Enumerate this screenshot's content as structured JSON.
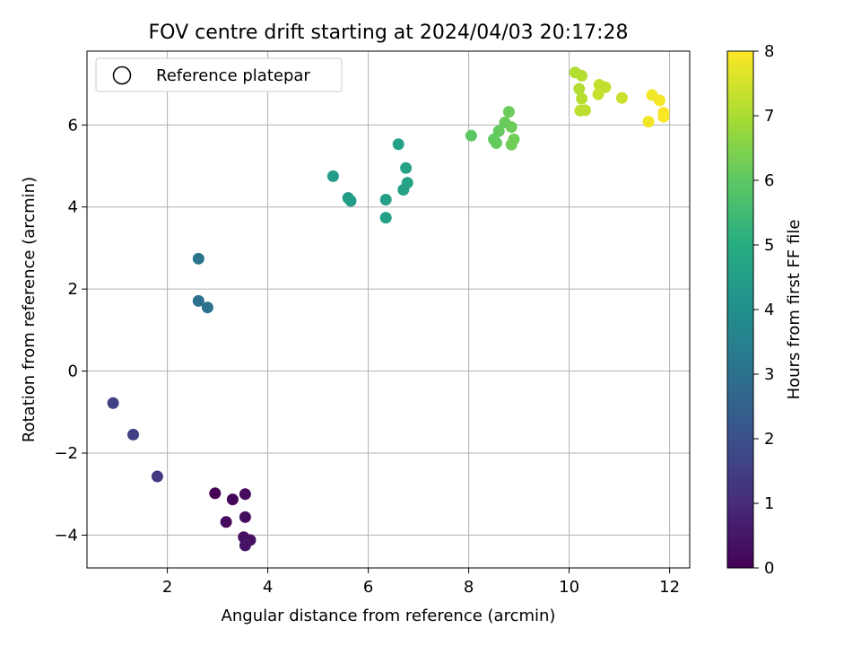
{
  "chart_data": {
    "type": "scatter",
    "title": "FOV centre drift starting at 2024/04/03 20:17:28",
    "xlabel": "Angular distance from reference (arcmin)",
    "ylabel": "Rotation from reference (arcmin)",
    "xlim": [
      0.4,
      12.4
    ],
    "ylim": [
      -4.8,
      7.8
    ],
    "xticks": [
      2,
      4,
      6,
      8,
      10,
      12
    ],
    "yticks": [
      -4,
      -2,
      0,
      2,
      4,
      6
    ],
    "xtick_labels": [
      "2",
      "4",
      "6",
      "8",
      "10",
      "12"
    ],
    "ytick_labels": [
      "−4",
      "−2",
      "0",
      "2",
      "4",
      "6"
    ],
    "grid": true,
    "legend": {
      "placement": "top-left",
      "entries": [
        "Reference platepar"
      ]
    },
    "colorbar": {
      "label": "Hours from first FF file",
      "range": [
        0,
        8
      ],
      "ticks": [
        "0",
        "1",
        "2",
        "3",
        "4",
        "5",
        "6",
        "7",
        "8"
      ],
      "colormap": "viridis"
    },
    "points": [
      {
        "x": 2.95,
        "y": -2.98,
        "hours": 0.05
      },
      {
        "x": 3.3,
        "y": -3.13,
        "hours": 0.15
      },
      {
        "x": 3.55,
        "y": -3.0,
        "hours": 0.25
      },
      {
        "x": 3.55,
        "y": -3.56,
        "hours": 0.3
      },
      {
        "x": 3.17,
        "y": -3.68,
        "hours": 0.2
      },
      {
        "x": 3.52,
        "y": -4.05,
        "hours": 0.35
      },
      {
        "x": 3.65,
        "y": -4.12,
        "hours": 0.4
      },
      {
        "x": 3.55,
        "y": -4.25,
        "hours": 0.45
      },
      {
        "x": 1.8,
        "y": -2.57,
        "hours": 1.3
      },
      {
        "x": 1.32,
        "y": -1.55,
        "hours": 1.5
      },
      {
        "x": 0.92,
        "y": -0.78,
        "hours": 1.55
      },
      {
        "x": 2.62,
        "y": 2.74,
        "hours": 3.05
      },
      {
        "x": 2.62,
        "y": 1.71,
        "hours": 2.95
      },
      {
        "x": 2.8,
        "y": 1.55,
        "hours": 3.0
      },
      {
        "x": 5.3,
        "y": 4.75,
        "hours": 4.4
      },
      {
        "x": 5.6,
        "y": 4.22,
        "hours": 4.35
      },
      {
        "x": 5.65,
        "y": 4.15,
        "hours": 4.45
      },
      {
        "x": 6.35,
        "y": 4.18,
        "hours": 4.5
      },
      {
        "x": 6.35,
        "y": 3.74,
        "hours": 4.5
      },
      {
        "x": 6.6,
        "y": 5.53,
        "hours": 4.6
      },
      {
        "x": 6.75,
        "y": 4.95,
        "hours": 4.65
      },
      {
        "x": 6.78,
        "y": 4.59,
        "hours": 4.65
      },
      {
        "x": 6.7,
        "y": 4.42,
        "hours": 4.6
      },
      {
        "x": 8.05,
        "y": 5.74,
        "hours": 6.0
      },
      {
        "x": 8.5,
        "y": 5.65,
        "hours": 6.05
      },
      {
        "x": 8.6,
        "y": 5.85,
        "hours": 6.1
      },
      {
        "x": 8.55,
        "y": 5.56,
        "hours": 6.1
      },
      {
        "x": 8.72,
        "y": 6.06,
        "hours": 6.15
      },
      {
        "x": 8.8,
        "y": 6.32,
        "hours": 6.2
      },
      {
        "x": 8.85,
        "y": 5.95,
        "hours": 6.2
      },
      {
        "x": 8.9,
        "y": 5.65,
        "hours": 6.25
      },
      {
        "x": 8.85,
        "y": 5.52,
        "hours": 6.25
      },
      {
        "x": 10.12,
        "y": 7.28,
        "hours": 7.1
      },
      {
        "x": 10.25,
        "y": 7.2,
        "hours": 7.15
      },
      {
        "x": 10.2,
        "y": 6.88,
        "hours": 7.1
      },
      {
        "x": 10.25,
        "y": 6.64,
        "hours": 7.15
      },
      {
        "x": 10.22,
        "y": 6.35,
        "hours": 7.2
      },
      {
        "x": 10.32,
        "y": 6.36,
        "hours": 7.2
      },
      {
        "x": 10.6,
        "y": 6.98,
        "hours": 7.3
      },
      {
        "x": 10.72,
        "y": 6.92,
        "hours": 7.3
      },
      {
        "x": 10.58,
        "y": 6.75,
        "hours": 7.35
      },
      {
        "x": 11.05,
        "y": 6.66,
        "hours": 7.4
      },
      {
        "x": 11.65,
        "y": 6.73,
        "hours": 7.85
      },
      {
        "x": 11.8,
        "y": 6.6,
        "hours": 7.9
      },
      {
        "x": 11.88,
        "y": 6.3,
        "hours": 7.95
      },
      {
        "x": 11.88,
        "y": 6.2,
        "hours": 7.95
      },
      {
        "x": 11.58,
        "y": 6.08,
        "hours": 7.85
      }
    ]
  }
}
